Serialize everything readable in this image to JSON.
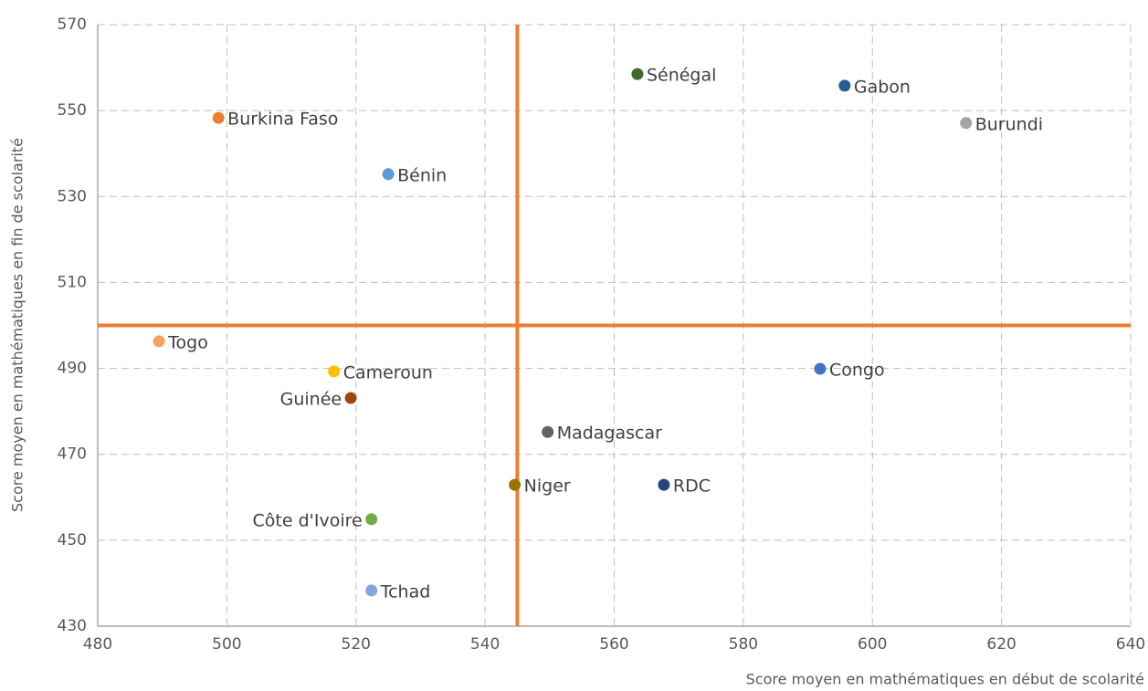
{
  "chart_data": {
    "type": "scatter",
    "x_label": "Score moyen en mathématiques en début de scolarité",
    "y_label": "Score moyen en mathématiques en fin de scolarité",
    "labels": [
      "Burkina Faso",
      "Bénin",
      "Sénégal",
      "Gabon",
      "Burundi",
      "Togo",
      "Cameroun",
      "Guinée",
      "Congo",
      "Madagascar",
      "Niger",
      "RDC",
      "Côte d'Ivoire",
      "Tchad"
    ],
    "x": [
      498.7,
      525.0,
      563.6,
      595.7,
      614.5,
      489.5,
      516.6,
      519.2,
      591.9,
      549.7,
      544.6,
      567.7,
      522.4,
      522.4
    ],
    "values": [
      548.3,
      535.2,
      558.5,
      555.8,
      547.1,
      496.3,
      489.3,
      483.1,
      489.9,
      475.2,
      462.9,
      462.9,
      454.9,
      438.3
    ],
    "colors": [
      "#ed7d31",
      "#5b9bd5",
      "#43682b",
      "#255e91",
      "#a5a5a5",
      "#f4a460",
      "#ffc000",
      "#9e480e",
      "#4472c4",
      "#636363",
      "#997300",
      "#264478",
      "#70ad47",
      "#7fa8dc"
    ],
    "reference_lines": {
      "x": 545,
      "y": 500,
      "color": "#ed7d31"
    },
    "xlim": [
      480,
      640
    ],
    "xticks": [
      480,
      500,
      520,
      540,
      560,
      580,
      600,
      620,
      640
    ],
    "ylim": [
      430,
      570
    ],
    "yticks": [
      430,
      450,
      470,
      490,
      510,
      530,
      550,
      570
    ],
    "grid": true
  }
}
